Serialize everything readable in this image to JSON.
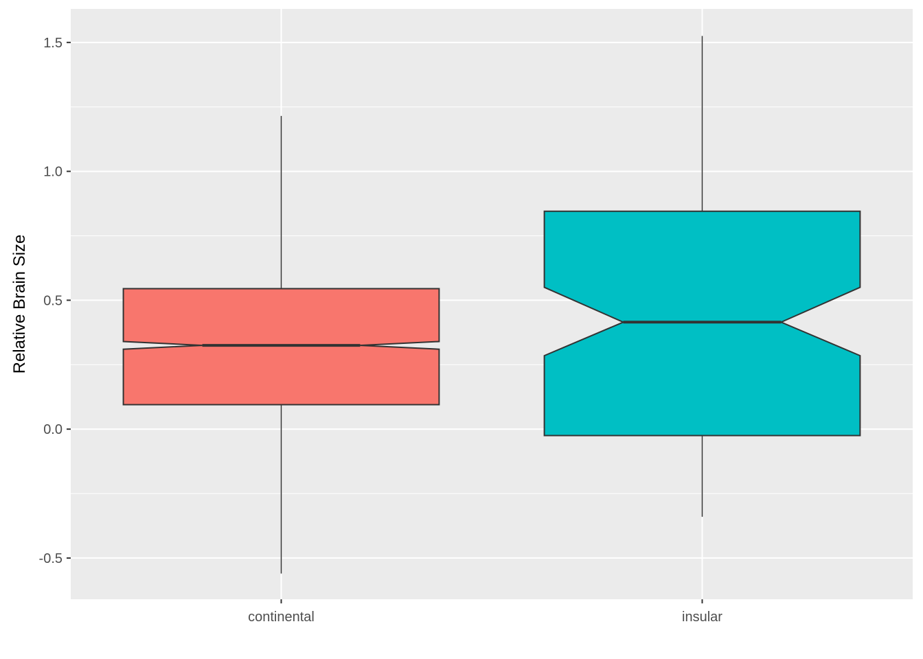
{
  "chart_data": {
    "type": "boxplot",
    "notched": true,
    "title": "",
    "xlabel": "",
    "ylabel": "Relative Brain Size",
    "ylim": [
      -0.66,
      1.63
    ],
    "y_ticks": [
      "-0.5",
      "0.0",
      "0.5",
      "1.0",
      "1.5"
    ],
    "grid": true,
    "legend": "none",
    "background_color": "#ebebeb",
    "categories": [
      "continental",
      "insular"
    ],
    "boxes": [
      {
        "category": "continental",
        "color": "#f8766d",
        "whisker_low": -0.56,
        "q1": 0.095,
        "median": 0.325,
        "q3": 0.545,
        "whisker_high": 1.215,
        "notch_low": 0.31,
        "notch_high": 0.34
      },
      {
        "category": "insular",
        "color": "#00bfc4",
        "whisker_low": -0.34,
        "q1": -0.025,
        "median": 0.415,
        "q3": 0.845,
        "whisker_high": 1.525,
        "notch_low": 0.285,
        "notch_high": 0.55
      }
    ]
  }
}
